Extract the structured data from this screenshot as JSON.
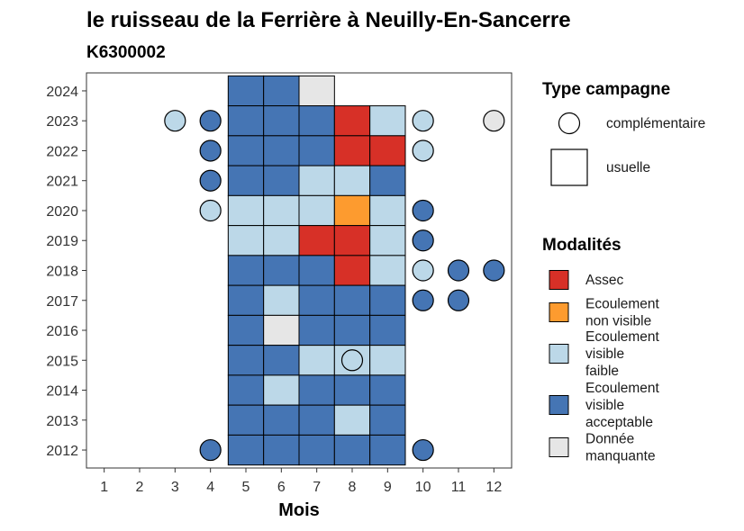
{
  "chart_data": {
    "type": "heatmap",
    "title": "le ruisseau de la Ferrière à Neuilly-En-Sancerre",
    "subtitle": "K6300002",
    "xlabel": "Mois",
    "ylabel": "",
    "x_ticks": [
      1,
      2,
      3,
      4,
      5,
      6,
      7,
      8,
      9,
      10,
      11,
      12
    ],
    "y_ticks": [
      2012,
      2013,
      2014,
      2015,
      2016,
      2017,
      2018,
      2019,
      2020,
      2021,
      2022,
      2023,
      2024
    ],
    "xlim": [
      0.5,
      12.5
    ],
    "ylim": [
      2011.4,
      2024.6
    ],
    "modalites": [
      {
        "key": "assec",
        "label": "Assec",
        "lines": [
          "Assec"
        ],
        "color": "#d73027"
      },
      {
        "key": "nonvisible",
        "label": "Ecoulement non visible",
        "lines": [
          "Ecoulement",
          "non visible"
        ],
        "color": "#fd9b2f"
      },
      {
        "key": "faible",
        "label": "Ecoulement visible faible",
        "lines": [
          "Ecoulement",
          "visible",
          "faible"
        ],
        "color": "#bcd8e8"
      },
      {
        "key": "acceptable",
        "label": "Ecoulement visible acceptable",
        "lines": [
          "Ecoulement",
          "visible",
          "acceptable"
        ],
        "color": "#4575b4"
      },
      {
        "key": "manquante",
        "label": "Donnée manquante",
        "lines": [
          "Donnée",
          "manquante"
        ],
        "color": "#e6e6e6"
      }
    ],
    "campagnes": [
      {
        "key": "complementaire",
        "label": "complémentaire",
        "shape": "circle"
      },
      {
        "key": "usuelle",
        "label": "usuelle",
        "shape": "square"
      }
    ],
    "legend": {
      "campagne_title": "Type campagne",
      "modalite_title": "Modalités",
      "position": "right"
    },
    "grid": false,
    "usuelle": [
      {
        "year": 2024,
        "month": 5,
        "m": "acceptable"
      },
      {
        "year": 2024,
        "month": 6,
        "m": "acceptable"
      },
      {
        "year": 2024,
        "month": 7,
        "m": "manquante"
      },
      {
        "year": 2023,
        "month": 5,
        "m": "acceptable"
      },
      {
        "year": 2023,
        "month": 6,
        "m": "acceptable"
      },
      {
        "year": 2023,
        "month": 7,
        "m": "acceptable"
      },
      {
        "year": 2023,
        "month": 8,
        "m": "assec"
      },
      {
        "year": 2023,
        "month": 9,
        "m": "faible"
      },
      {
        "year": 2022,
        "month": 5,
        "m": "acceptable"
      },
      {
        "year": 2022,
        "month": 6,
        "m": "acceptable"
      },
      {
        "year": 2022,
        "month": 7,
        "m": "acceptable"
      },
      {
        "year": 2022,
        "month": 8,
        "m": "assec"
      },
      {
        "year": 2022,
        "month": 9,
        "m": "assec"
      },
      {
        "year": 2021,
        "month": 5,
        "m": "acceptable"
      },
      {
        "year": 2021,
        "month": 6,
        "m": "acceptable"
      },
      {
        "year": 2021,
        "month": 7,
        "m": "faible"
      },
      {
        "year": 2021,
        "month": 8,
        "m": "faible"
      },
      {
        "year": 2021,
        "month": 9,
        "m": "acceptable"
      },
      {
        "year": 2020,
        "month": 5,
        "m": "faible"
      },
      {
        "year": 2020,
        "month": 6,
        "m": "faible"
      },
      {
        "year": 2020,
        "month": 7,
        "m": "faible"
      },
      {
        "year": 2020,
        "month": 8,
        "m": "nonvisible"
      },
      {
        "year": 2020,
        "month": 9,
        "m": "faible"
      },
      {
        "year": 2019,
        "month": 5,
        "m": "faible"
      },
      {
        "year": 2019,
        "month": 6,
        "m": "faible"
      },
      {
        "year": 2019,
        "month": 7,
        "m": "assec"
      },
      {
        "year": 2019,
        "month": 8,
        "m": "assec"
      },
      {
        "year": 2019,
        "month": 9,
        "m": "faible"
      },
      {
        "year": 2018,
        "month": 5,
        "m": "acceptable"
      },
      {
        "year": 2018,
        "month": 6,
        "m": "acceptable"
      },
      {
        "year": 2018,
        "month": 7,
        "m": "acceptable"
      },
      {
        "year": 2018,
        "month": 8,
        "m": "assec"
      },
      {
        "year": 2018,
        "month": 9,
        "m": "faible"
      },
      {
        "year": 2017,
        "month": 5,
        "m": "acceptable"
      },
      {
        "year": 2017,
        "month": 6,
        "m": "faible"
      },
      {
        "year": 2017,
        "month": 7,
        "m": "acceptable"
      },
      {
        "year": 2017,
        "month": 8,
        "m": "acceptable"
      },
      {
        "year": 2017,
        "month": 9,
        "m": "acceptable"
      },
      {
        "year": 2016,
        "month": 5,
        "m": "acceptable"
      },
      {
        "year": 2016,
        "month": 6,
        "m": "manquante"
      },
      {
        "year": 2016,
        "month": 7,
        "m": "acceptable"
      },
      {
        "year": 2016,
        "month": 8,
        "m": "acceptable"
      },
      {
        "year": 2016,
        "month": 9,
        "m": "acceptable"
      },
      {
        "year": 2015,
        "month": 5,
        "m": "acceptable"
      },
      {
        "year": 2015,
        "month": 6,
        "m": "acceptable"
      },
      {
        "year": 2015,
        "month": 7,
        "m": "faible"
      },
      {
        "year": 2015,
        "month": 8,
        "m": "faible"
      },
      {
        "year": 2015,
        "month": 9,
        "m": "faible"
      },
      {
        "year": 2014,
        "month": 5,
        "m": "acceptable"
      },
      {
        "year": 2014,
        "month": 6,
        "m": "faible"
      },
      {
        "year": 2014,
        "month": 7,
        "m": "acceptable"
      },
      {
        "year": 2014,
        "month": 8,
        "m": "acceptable"
      },
      {
        "year": 2014,
        "month": 9,
        "m": "acceptable"
      },
      {
        "year": 2013,
        "month": 5,
        "m": "acceptable"
      },
      {
        "year": 2013,
        "month": 6,
        "m": "acceptable"
      },
      {
        "year": 2013,
        "month": 7,
        "m": "acceptable"
      },
      {
        "year": 2013,
        "month": 8,
        "m": "faible"
      },
      {
        "year": 2013,
        "month": 9,
        "m": "acceptable"
      },
      {
        "year": 2012,
        "month": 5,
        "m": "acceptable"
      },
      {
        "year": 2012,
        "month": 6,
        "m": "acceptable"
      },
      {
        "year": 2012,
        "month": 7,
        "m": "acceptable"
      },
      {
        "year": 2012,
        "month": 8,
        "m": "acceptable"
      },
      {
        "year": 2012,
        "month": 9,
        "m": "acceptable"
      }
    ],
    "complementaire": [
      {
        "year": 2023,
        "month": 3,
        "m": "faible"
      },
      {
        "year": 2023,
        "month": 4,
        "m": "acceptable"
      },
      {
        "year": 2023,
        "month": 10,
        "m": "faible"
      },
      {
        "year": 2023,
        "month": 12,
        "m": "manquante"
      },
      {
        "year": 2022,
        "month": 4,
        "m": "acceptable"
      },
      {
        "year": 2022,
        "month": 10,
        "m": "faible"
      },
      {
        "year": 2021,
        "month": 4,
        "m": "acceptable"
      },
      {
        "year": 2020,
        "month": 4,
        "m": "faible"
      },
      {
        "year": 2020,
        "month": 10,
        "m": "acceptable"
      },
      {
        "year": 2019,
        "month": 10,
        "m": "acceptable"
      },
      {
        "year": 2018,
        "month": 10,
        "m": "faible"
      },
      {
        "year": 2018,
        "month": 11,
        "m": "acceptable"
      },
      {
        "year": 2018,
        "month": 12,
        "m": "acceptable"
      },
      {
        "year": 2017,
        "month": 10,
        "m": "acceptable"
      },
      {
        "year": 2017,
        "month": 11,
        "m": "acceptable"
      },
      {
        "year": 2015,
        "month": 8,
        "m": "faible"
      },
      {
        "year": 2012,
        "month": 4,
        "m": "acceptable"
      },
      {
        "year": 2012,
        "month": 10,
        "m": "acceptable"
      }
    ]
  }
}
